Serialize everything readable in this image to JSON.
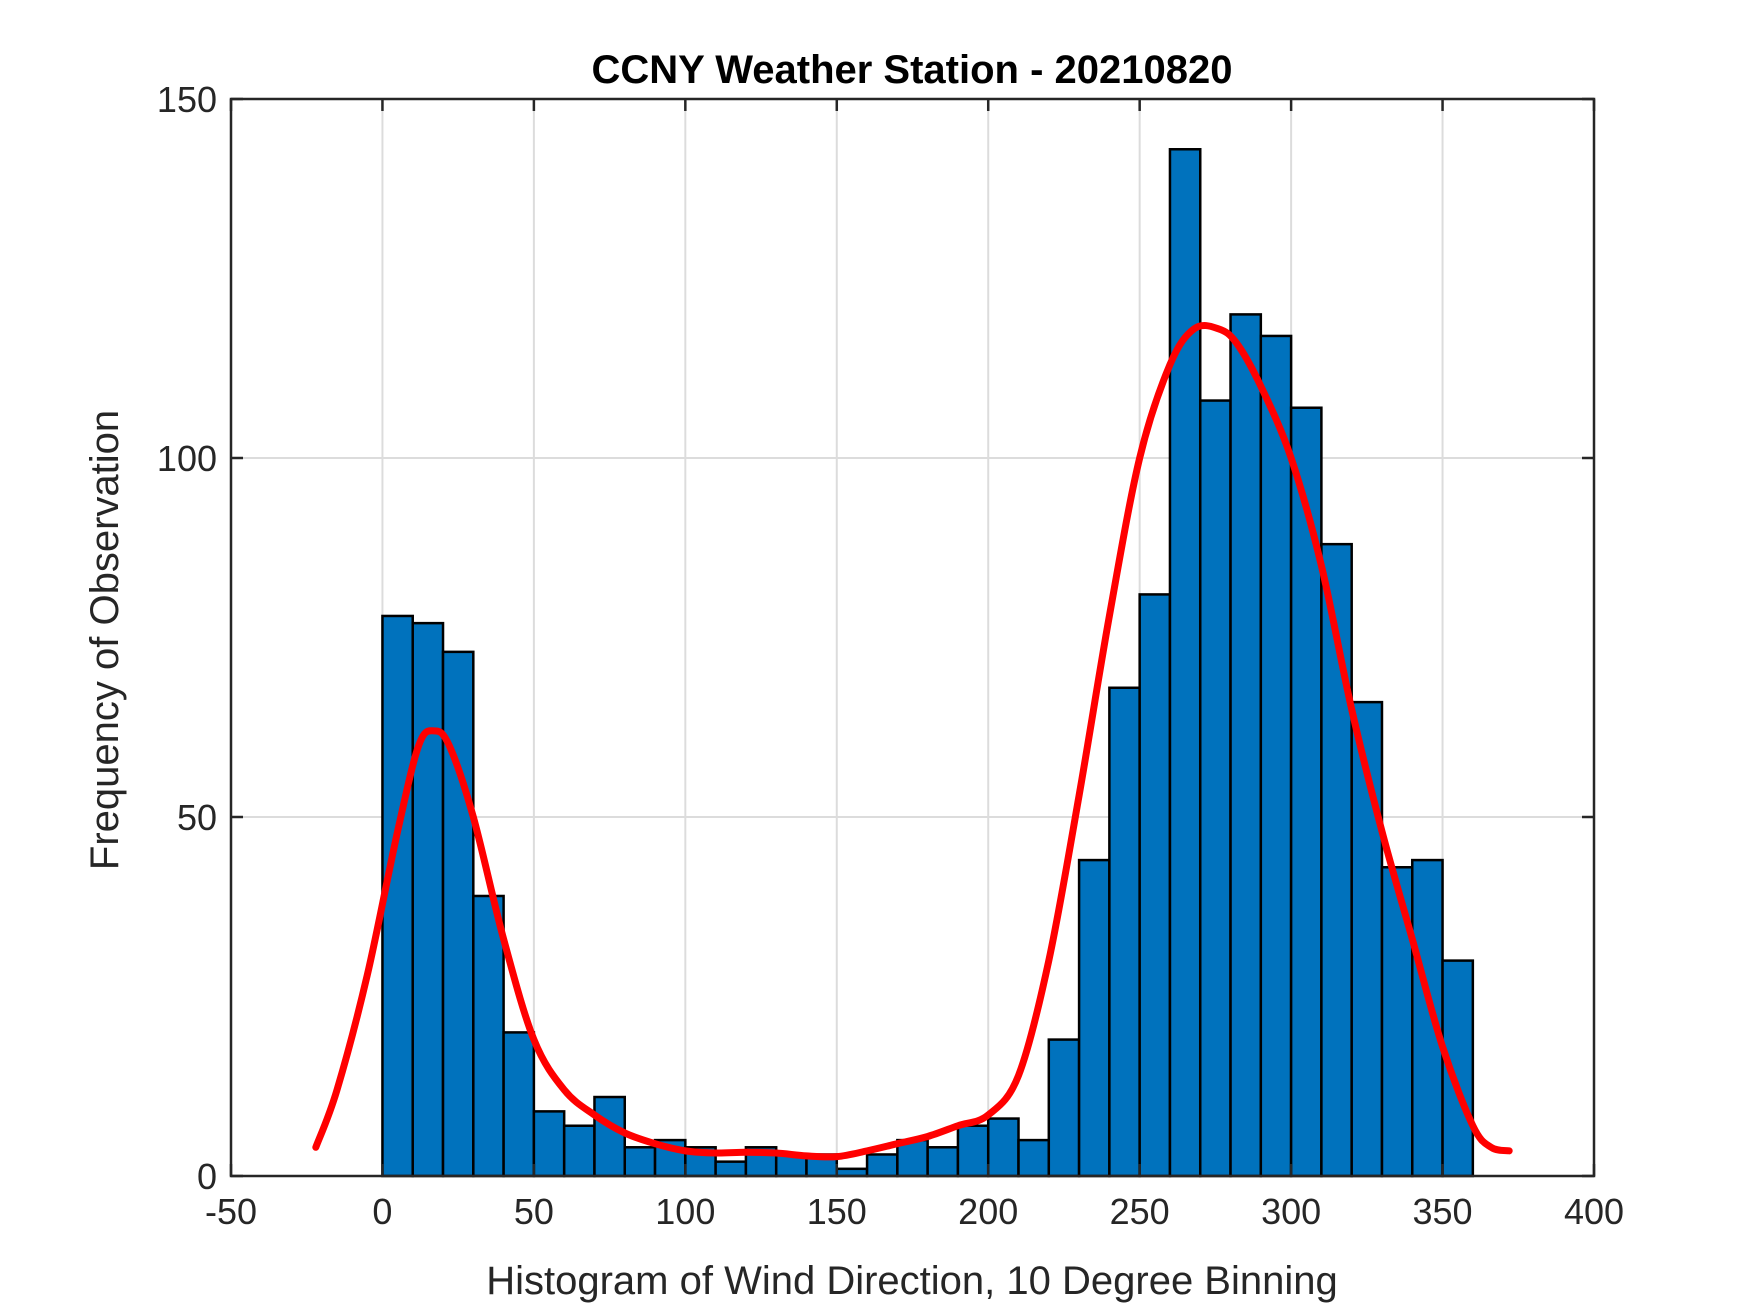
{
  "chart_data": {
    "type": "bar",
    "title": "CCNY Weather Station - 20210820",
    "xlabel": "Histogram of Wind Direction, 10 Degree Binning",
    "ylabel": "Frequency of Observation",
    "xlim": [
      -50,
      400
    ],
    "ylim": [
      0,
      150
    ],
    "xticks": [
      -50,
      0,
      50,
      100,
      150,
      200,
      250,
      300,
      350,
      400
    ],
    "yticks": [
      0,
      50,
      100,
      150
    ],
    "grid": true,
    "bin_width": 10,
    "bins": {
      "edges_start": [
        0,
        10,
        20,
        30,
        40,
        50,
        60,
        70,
        80,
        90,
        100,
        110,
        120,
        130,
        140,
        150,
        160,
        170,
        180,
        190,
        200,
        210,
        220,
        230,
        240,
        250,
        260,
        270,
        280,
        290,
        300,
        310,
        320,
        330,
        340,
        350
      ],
      "counts": [
        78,
        77,
        73,
        39,
        20,
        9,
        7,
        11,
        4,
        5,
        4,
        2,
        4,
        3,
        3,
        1,
        3,
        5,
        4,
        7,
        8,
        5,
        19,
        44,
        68,
        81,
        143,
        108,
        120,
        117,
        107,
        88,
        66,
        43,
        44,
        30
      ],
      "color": "#0072BD"
    },
    "fit_curve": {
      "color": "#ff0000",
      "x": [
        -22,
        -15,
        -5,
        5,
        12,
        17,
        22,
        30,
        40,
        50,
        60,
        70,
        80,
        90,
        100,
        110,
        120,
        130,
        140,
        150,
        160,
        170,
        180,
        190,
        200,
        210,
        220,
        230,
        240,
        250,
        260,
        268,
        276,
        282,
        290,
        300,
        310,
        320,
        330,
        340,
        350,
        360,
        366,
        372
      ],
      "y": [
        4,
        12,
        28,
        48,
        60,
        62,
        60,
        50,
        33,
        19,
        12,
        8.5,
        6,
        4.5,
        3.5,
        3.2,
        3.3,
        3.2,
        2.8,
        2.7,
        3.5,
        4.5,
        5.5,
        7,
        8.5,
        14,
        30,
        53,
        78,
        100,
        113,
        118,
        118,
        116,
        110,
        100,
        85,
        65,
        48,
        33,
        18,
        7,
        4,
        3.5
      ]
    }
  }
}
